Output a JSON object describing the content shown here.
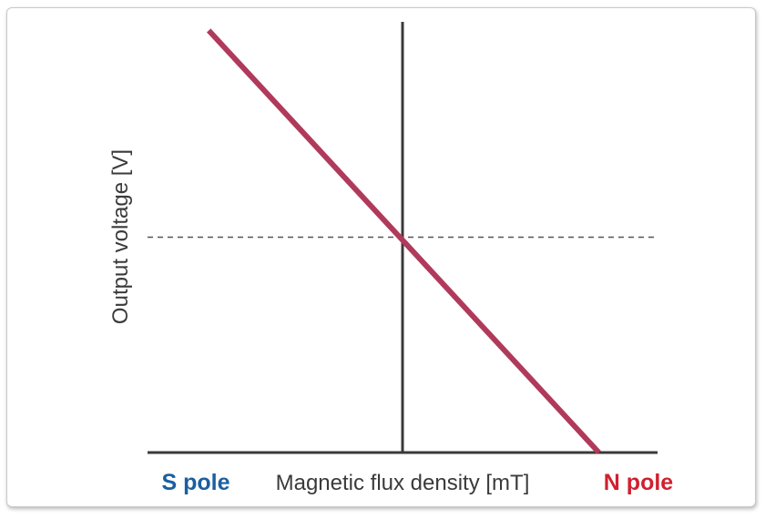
{
  "chart_data": {
    "type": "line",
    "title": "",
    "xlabel": "Magnetic flux density [mT]",
    "ylabel": "Output voltage [V]",
    "x_left_label": "S pole",
    "x_right_label": "N pole",
    "xlim": [
      -1,
      1
    ],
    "ylim": [
      0,
      1
    ],
    "grid": false,
    "series": [
      {
        "x": [
          -0.76,
          0.77
        ],
        "y": [
          0.98,
          0.0
        ]
      }
    ],
    "reference_line_y": 0.5,
    "colors": {
      "line": "#b03a5b",
      "axis": "#3a3a3a",
      "reference": "#555555",
      "s_pole": "#1a5fa0",
      "n_pole": "#d0202f",
      "label": "#3a3a3a"
    }
  }
}
